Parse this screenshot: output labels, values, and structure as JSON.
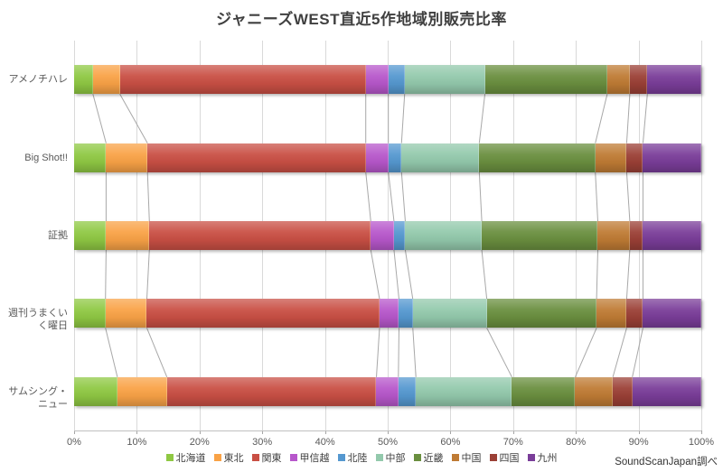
{
  "title": "ジャニーズWEST直近5作地域別販売比率",
  "source_note": "SoundScanJapan調べ",
  "chart_data": {
    "type": "bar",
    "variant": "horizontal-stacked-100",
    "title": "ジャニーズWEST直近5作地域別販売比率",
    "categories": [
      "アメノチハレ",
      "Big Shot!!",
      "証拠",
      "週刊うまくいく曜日",
      "サムシング・ニュー"
    ],
    "series": [
      {
        "name": "北海道",
        "color": "#8FC843",
        "values": [
          3.0,
          5.1,
          5.1,
          5.0,
          6.9
        ]
      },
      {
        "name": "東北",
        "color": "#F9A246",
        "values": [
          4.3,
          6.6,
          6.9,
          6.6,
          7.9
        ]
      },
      {
        "name": "関東",
        "color": "#C94F44",
        "values": [
          39.2,
          34.8,
          35.3,
          37.1,
          33.4
        ]
      },
      {
        "name": "甲信越",
        "color": "#B757CB",
        "values": [
          3.6,
          3.6,
          3.7,
          3.1,
          3.5
        ]
      },
      {
        "name": "北陸",
        "color": "#5598D0",
        "values": [
          2.6,
          2.1,
          1.8,
          2.2,
          2.8
        ]
      },
      {
        "name": "中部",
        "color": "#93C9AC",
        "values": [
          12.8,
          12.4,
          12.2,
          11.8,
          15.3
        ]
      },
      {
        "name": "近畿",
        "color": "#6A8F3F",
        "values": [
          19.5,
          18.5,
          18.5,
          17.5,
          10.1
        ]
      },
      {
        "name": "中国",
        "color": "#BF7B34",
        "values": [
          3.6,
          5.0,
          5.1,
          4.8,
          6.0
        ]
      },
      {
        "name": "四国",
        "color": "#9B4036",
        "values": [
          2.8,
          2.6,
          2.1,
          2.6,
          3.1
        ]
      },
      {
        "name": "九州",
        "color": "#7A3D99",
        "values": [
          8.6,
          9.3,
          9.3,
          9.3,
          11.0
        ]
      }
    ],
    "x_ticks": [
      "0%",
      "10%",
      "20%",
      "30%",
      "40%",
      "50%",
      "60%",
      "70%",
      "80%",
      "90%",
      "100%"
    ],
    "xlim": [
      0,
      100
    ],
    "unit": "percent",
    "grid": "vertical",
    "legend_position": "bottom",
    "connector_lines": true,
    "gridline_color": "#D9D9D9",
    "connector_color": "#A8A8A8",
    "axis_text_color": "#595959",
    "title_color": "#404040"
  }
}
